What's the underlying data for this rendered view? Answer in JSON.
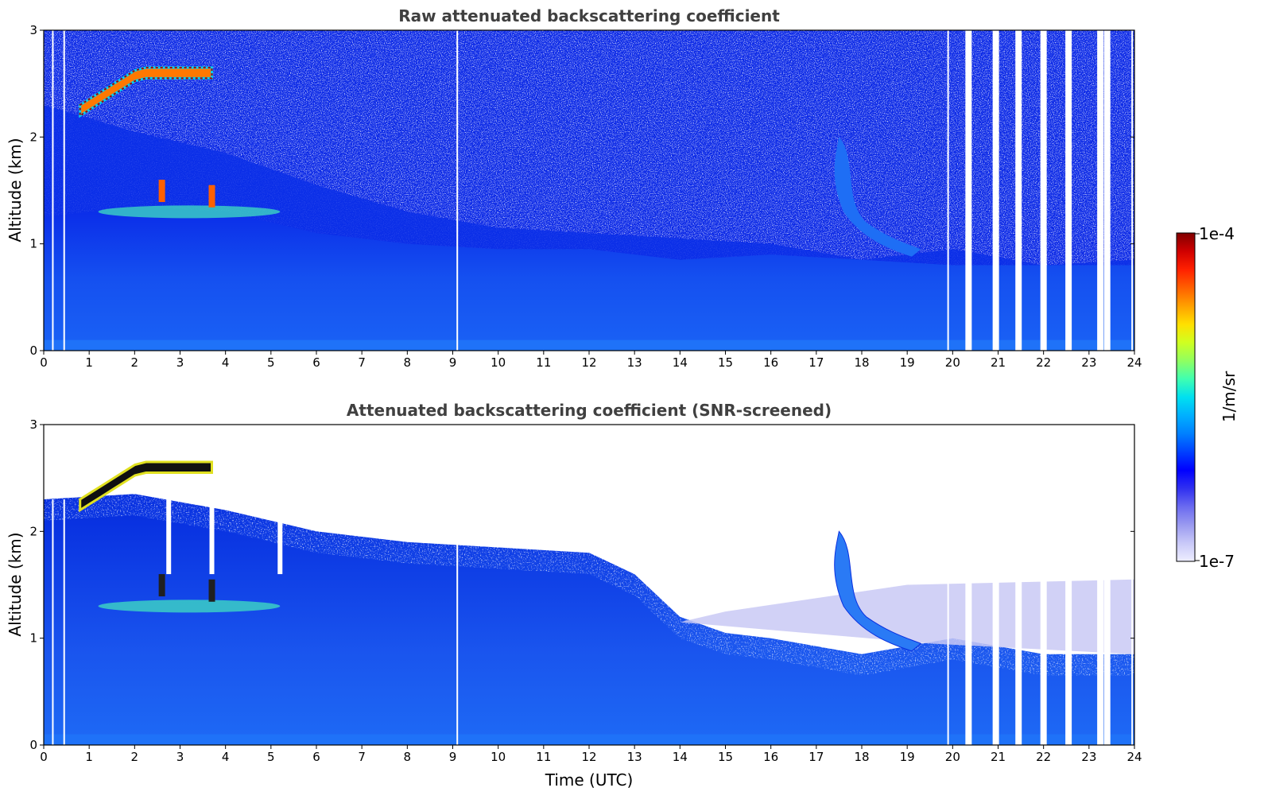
{
  "chart_data": [
    {
      "type": "heatmap",
      "title": "Raw attenuated backscattering coefficient",
      "xlabel": "",
      "ylabel": "Altitude (km)",
      "xlim": [
        0,
        24
      ],
      "ylim": [
        0,
        3
      ],
      "xticks": [
        "0",
        "1",
        "2",
        "3",
        "4",
        "5",
        "6",
        "7",
        "8",
        "9",
        "10",
        "11",
        "12",
        "13",
        "14",
        "15",
        "16",
        "17",
        "18",
        "19",
        "20",
        "21",
        "22",
        "23",
        "24"
      ],
      "yticks": [
        "0",
        "1",
        "2",
        "3"
      ],
      "noise_floor_km": [
        [
          0,
          2.3
        ],
        [
          2,
          2.05
        ],
        [
          4,
          1.85
        ],
        [
          6,
          1.55
        ],
        [
          8,
          1.3
        ],
        [
          10,
          1.15
        ],
        [
          12,
          1.1
        ],
        [
          14,
          1.05
        ],
        [
          16,
          1.0
        ],
        [
          18,
          0.85
        ],
        [
          20,
          0.95
        ],
        [
          22,
          0.8
        ],
        [
          24,
          0.85
        ]
      ],
      "aerosol_layer_top_km": [
        [
          0,
          1.25
        ],
        [
          2,
          1.35
        ],
        [
          4,
          1.3
        ],
        [
          6,
          1.1
        ],
        [
          8,
          1.0
        ],
        [
          10,
          0.95
        ],
        [
          12,
          0.95
        ],
        [
          14,
          0.85
        ],
        [
          16,
          0.9
        ],
        [
          18,
          0.85
        ],
        [
          20,
          0.8
        ],
        [
          24,
          0.8
        ]
      ],
      "cloud_layer": {
        "start_h": 0.8,
        "end_h": 3.7,
        "base_km": [
          2.2,
          2.55
        ],
        "top_km": [
          2.3,
          2.65
        ]
      },
      "features": [
        {
          "name": "elevated aerosol plume",
          "start_h": 17.5,
          "end_h": 19.3,
          "alt_km": [
            0.9,
            2.0
          ]
        }
      ],
      "data_gaps_h": [
        0.2,
        0.45,
        9.1,
        19.9,
        20.35,
        20.95,
        21.45,
        22.0,
        22.55,
        23.25,
        23.4,
        23.95
      ]
    },
    {
      "type": "heatmap",
      "title": "Attenuated backscattering coefficient (SNR-screened)",
      "xlabel": "Time (UTC)",
      "ylabel": "Altitude (km)",
      "xlim": [
        0,
        24
      ],
      "ylim": [
        0,
        3
      ],
      "xticks": [
        "0",
        "1",
        "2",
        "3",
        "4",
        "5",
        "6",
        "7",
        "8",
        "9",
        "10",
        "11",
        "12",
        "13",
        "14",
        "15",
        "16",
        "17",
        "18",
        "19",
        "20",
        "21",
        "22",
        "23",
        "24"
      ],
      "yticks": [
        "0",
        "1",
        "2",
        "3"
      ],
      "screened_top_km": [
        [
          0,
          2.3
        ],
        [
          2,
          2.35
        ],
        [
          4,
          2.2
        ],
        [
          6,
          2.0
        ],
        [
          8,
          1.9
        ],
        [
          10,
          1.85
        ],
        [
          12,
          1.8
        ],
        [
          13,
          1.6
        ],
        [
          14,
          1.2
        ],
        [
          15,
          1.05
        ],
        [
          16,
          1.0
        ],
        [
          18,
          0.85
        ],
        [
          20,
          1.0
        ],
        [
          22,
          0.85
        ],
        [
          24,
          0.85
        ]
      ],
      "data_gaps_h": [
        0.2,
        0.45,
        9.1,
        19.9,
        20.35,
        20.95,
        21.45,
        22.0,
        22.55,
        23.25,
        23.4,
        23.95
      ]
    }
  ],
  "colorbar": {
    "label": "1/m/sr",
    "max_label": "1e-4",
    "min_label": "1e-7",
    "scale": "log",
    "colors": [
      "#eeeeff",
      "#c8c8f8",
      "#9a9af0",
      "#6a6af0",
      "#3030f0",
      "#0000ff",
      "#0040ff",
      "#0080ff",
      "#00b0ff",
      "#00e0f0",
      "#40ffb0",
      "#90ff60",
      "#d0ff20",
      "#ffe000",
      "#ffa000",
      "#ff6000",
      "#ff2000",
      "#d00000",
      "#800000"
    ]
  }
}
